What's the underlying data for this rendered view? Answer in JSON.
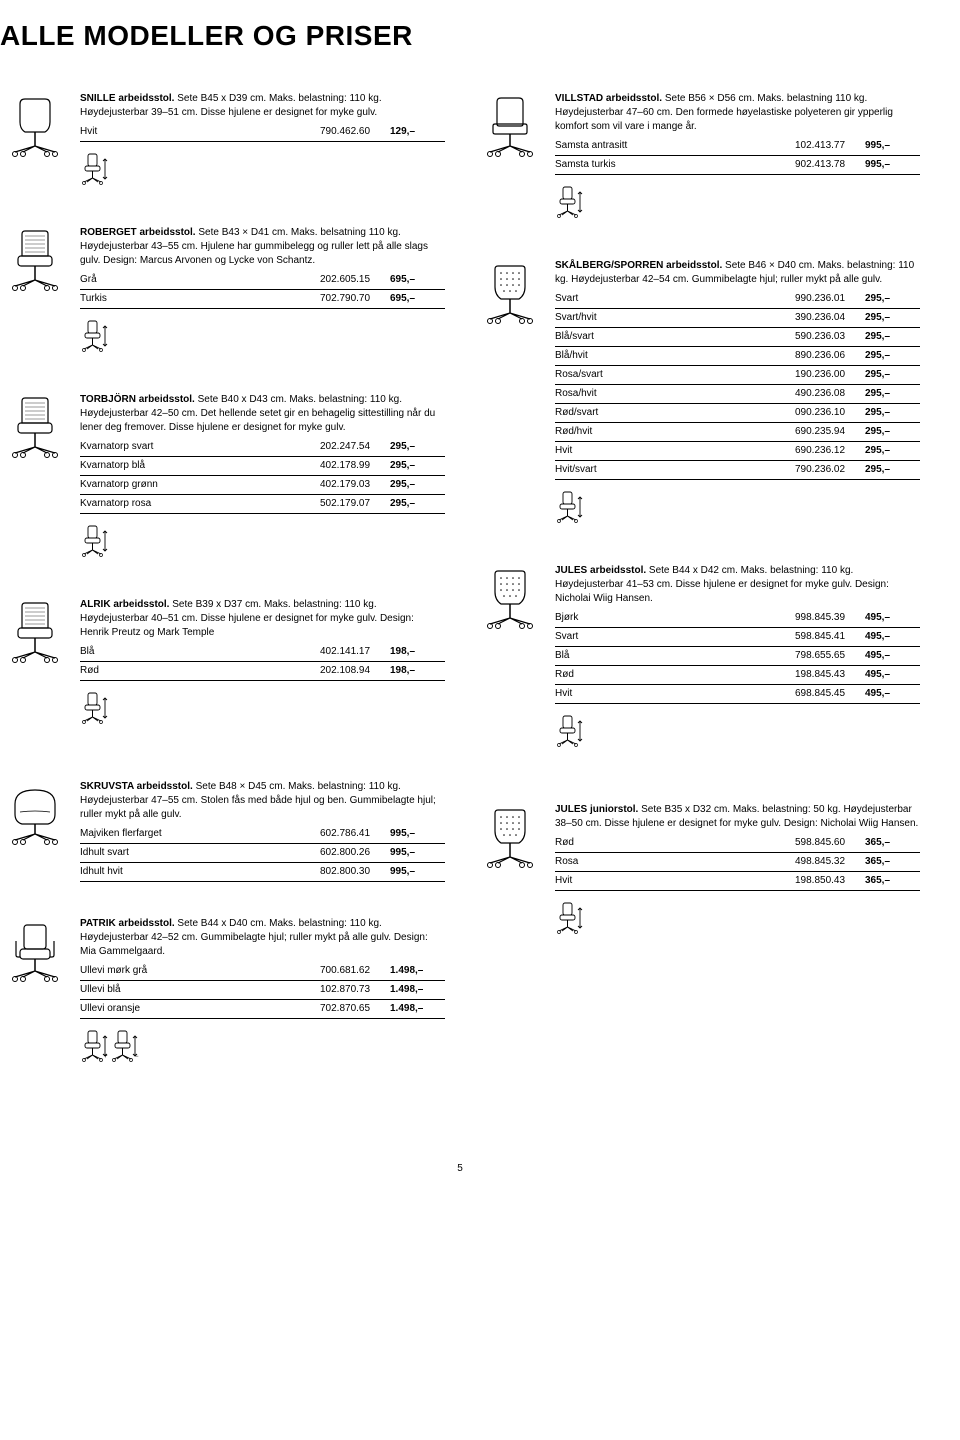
{
  "pageTitle": "ALLE MODELLER OG PRISER",
  "pageNumber": "5",
  "products": {
    "snille": {
      "desc": "<b>SNILLE arbeidsstol.</b> Sete B45 x D39 cm. Maks. belastning: 110 kg. Høydejusterbar 39–51 cm. Disse hjulene er designet for myke gulv.",
      "variants": [
        {
          "name": "Hvit",
          "art": "790.462.60",
          "price": "129,–"
        }
      ]
    },
    "villstad": {
      "desc": "<b>VILLSTAD arbeidsstol.</b> Sete B56 × D56 cm. Maks. belastning 110 kg. Høydejusterbar 47–60 cm. Den formede høyelastiske polyeteren gir ypperlig komfort som vil vare i mange år.",
      "variants": [
        {
          "name": "Samsta antrasitt",
          "art": "102.413.77",
          "price": "995,–"
        },
        {
          "name": "Samsta turkis",
          "art": "902.413.78",
          "price": "995,–"
        }
      ]
    },
    "roberget": {
      "desc": "<b>ROBERGET arbeidsstol.</b> Sete B43 × D41 cm. Maks. belsatning 110 kg. Høydejusterbar 43–55 cm. Hjulene har gummibelegg og ruller lett på alle slags gulv. Design: Marcus Arvonen og Lycke von Schantz.",
      "variants": [
        {
          "name": "Grå",
          "art": "202.605.15",
          "price": "695,–"
        },
        {
          "name": "Turkis",
          "art": "702.790.70",
          "price": "695,–"
        }
      ]
    },
    "torbjorn": {
      "desc": "<b>TORBJÖRN arbeidsstol.</b> Sete B40 x D43 cm. Maks. belastning: 110 kg. Høydejusterbar 42–50 cm. Det hellende setet gir en behagelig sittestilling når du lener deg fremover. Disse hjulene er designet for myke gulv.",
      "variants": [
        {
          "name": "Kvarnatorp svart",
          "art": "202.247.54",
          "price": "295,–"
        },
        {
          "name": "Kvarnatorp blå",
          "art": "402.178.99",
          "price": "295,–"
        },
        {
          "name": "Kvarnatorp grønn",
          "art": "402.179.03",
          "price": "295,–"
        },
        {
          "name": "Kvarnatorp rosa",
          "art": "502.179.07",
          "price": "295,–"
        }
      ]
    },
    "alrik": {
      "desc": "<b>ALRIK arbeidsstol.</b> Sete B39 x D37 cm. Maks. belastning: 110 kg. Høydejusterbar 40–51 cm. Disse hjulene er designet for myke gulv. Design: Henrik Preutz og Mark Temple",
      "variants": [
        {
          "name": "Blå",
          "art": "402.141.17",
          "price": "198,–"
        },
        {
          "name": "Rød",
          "art": "202.108.94",
          "price": "198,–"
        }
      ]
    },
    "skruvsta": {
      "desc": "<b>SKRUVSTA arbeidsstol.</b> Sete B48 × D45 cm. Maks. belastning: 110 kg. Høydejusterbar 47–55 cm. Stolen fås med både hjul og ben. Gummibelagte hjul; ruller mykt på alle gulv.",
      "variants": [
        {
          "name": "Majviken flerfarget",
          "art": "602.786.41",
          "price": "995,–"
        },
        {
          "name": "Idhult svart",
          "art": "602.800.26",
          "price": "995,–"
        },
        {
          "name": "Idhult hvit",
          "art": "802.800.30",
          "price": "995,–"
        }
      ]
    },
    "patrik": {
      "desc": "<b>PATRIK arbeidsstol.</b> Sete B44 x D40 cm. Maks. belastning: 110 kg. Høydejusterbar 42–52 cm. Gummibelagte hjul; ruller mykt på alle gulv. Design: Mia Gammelgaard.",
      "variants": [
        {
          "name": "Ullevi mørk grå",
          "art": "700.681.62",
          "price": "1.498,–"
        },
        {
          "name": "Ullevi blå",
          "art": "102.870.73",
          "price": "1.498,–"
        },
        {
          "name": "Ullevi oransje",
          "art": "702.870.65",
          "price": "1.498,–"
        }
      ]
    },
    "skalberg": {
      "desc": "<b>SKÅLBERG/SPORREN arbeidsstol.</b> Sete B46 × D40 cm. Maks. belastning: 110 kg. Høydejusterbar 42–54 cm. Gummibelagte hjul; ruller mykt på alle gulv.",
      "variants": [
        {
          "name": "Svart",
          "art": "990.236.01",
          "price": "295,–"
        },
        {
          "name": "Svart/hvit",
          "art": "390.236.04",
          "price": "295,–"
        },
        {
          "name": "Blå/svart",
          "art": "590.236.03",
          "price": "295,–"
        },
        {
          "name": "Blå/hvit",
          "art": "890.236.06",
          "price": "295,–"
        },
        {
          "name": "Rosa/svart",
          "art": "190.236.00",
          "price": "295,–"
        },
        {
          "name": "Rosa/hvit",
          "art": "490.236.08",
          "price": "295,–"
        },
        {
          "name": "Rød/svart",
          "art": "090.236.10",
          "price": "295,–"
        },
        {
          "name": "Rød/hvit",
          "art": "690.235.94",
          "price": "295,–"
        },
        {
          "name": "Hvit",
          "art": "690.236.12",
          "price": "295,–"
        },
        {
          "name": "Hvit/svart",
          "art": "790.236.02",
          "price": "295,–"
        }
      ]
    },
    "jules": {
      "desc": "<b>JULES arbeidsstol.</b> Sete B44 x D42 cm. Maks. belastning: 110 kg. Høydejusterbar 41–53 cm. Disse hjulene er designet for myke gulv. Design: Nicholai Wiig Hansen.",
      "variants": [
        {
          "name": "Bjørk",
          "art": "998.845.39",
          "price": "495,–"
        },
        {
          "name": "Svart",
          "art": "598.845.41",
          "price": "495,–"
        },
        {
          "name": "Blå",
          "art": "798.655.65",
          "price": "495,–"
        },
        {
          "name": "Rød",
          "art": "198.845.43",
          "price": "495,–"
        },
        {
          "name": "Hvit",
          "art": "698.845.45",
          "price": "495,–"
        }
      ]
    },
    "julesjr": {
      "desc": "<b>JULES juniorstol.</b> Sete B35 x D32 cm. Maks. belastning: 50 kg. Høydejusterbar 38–50 cm. Disse hjulene er designet for myke gulv. Design: Nicholai Wiig Hansen.",
      "variants": [
        {
          "name": "Rød",
          "art": "598.845.60",
          "price": "365,–"
        },
        {
          "name": "Rosa",
          "art": "498.845.32",
          "price": "365,–"
        },
        {
          "name": "Hvit",
          "art": "198.850.43",
          "price": "365,–"
        }
      ]
    }
  }
}
